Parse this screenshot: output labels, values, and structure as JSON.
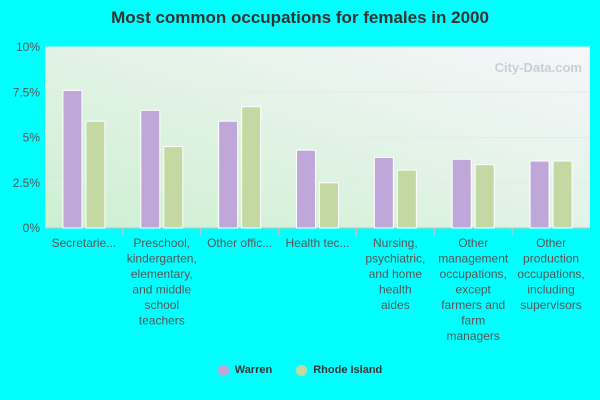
{
  "colors": {
    "page_background": "#00FFFF",
    "plot_gradient_top": "#F6F6FB",
    "plot_gradient_bottom": "#CDEFD0",
    "series_warren": "#BFA7DA",
    "series_ri": "#C3D8A3",
    "axis_text": "#555555",
    "title_text": "#333333"
  },
  "watermark": "City-Data.com",
  "chart_data": {
    "type": "bar",
    "title": "Most common occupations for females in 2000",
    "xlabel": "",
    "ylabel": "",
    "ylim": [
      0,
      10
    ],
    "y_ticks": [
      "0%",
      "2.5%",
      "5%",
      "7.5%",
      "10%"
    ],
    "y_tick_values": [
      0,
      2.5,
      5,
      7.5,
      10
    ],
    "grid": true,
    "legend_position": "bottom",
    "categories": [
      [
        "Secretarie..."
      ],
      [
        "Preschool,",
        "kindergarten,",
        "elementary,",
        "and middle",
        "school",
        "teachers"
      ],
      [
        "Other offic..."
      ],
      [
        "Health tec..."
      ],
      [
        "Nursing,",
        "psychiatric,",
        "and home",
        "health",
        "aides"
      ],
      [
        "Other",
        "management",
        "occupations,",
        "except",
        "farmers and",
        "farm",
        "managers"
      ],
      [
        "Other",
        "production",
        "occupations,",
        "including",
        "supervisors"
      ]
    ],
    "series": [
      {
        "name": "Warren",
        "values": [
          7.6,
          6.5,
          5.9,
          4.3,
          3.9,
          3.8,
          3.7
        ]
      },
      {
        "name": "Rhode Island",
        "values": [
          5.9,
          4.5,
          6.7,
          2.5,
          3.2,
          3.5,
          3.7
        ]
      }
    ]
  }
}
